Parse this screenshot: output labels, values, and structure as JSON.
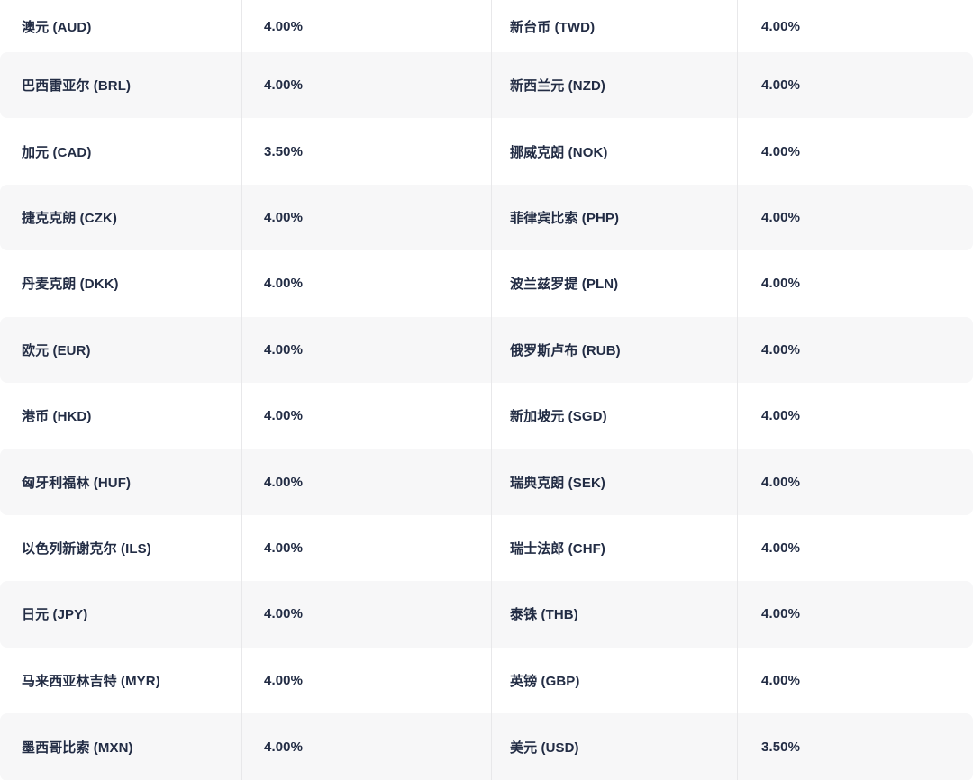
{
  "table": {
    "description_columns": [
      "currency_left",
      "rate_left",
      "currency_right",
      "rate_right"
    ],
    "rows": [
      {
        "left_currency": "澳元 (AUD)",
        "left_rate": "4.00%",
        "right_currency": "新台币 (TWD)",
        "right_rate": "4.00%"
      },
      {
        "left_currency": "巴西雷亚尔 (BRL)",
        "left_rate": "4.00%",
        "right_currency": "新西兰元 (NZD)",
        "right_rate": "4.00%"
      },
      {
        "left_currency": "加元 (CAD)",
        "left_rate": "3.50%",
        "right_currency": "挪威克朗 (NOK)",
        "right_rate": "4.00%"
      },
      {
        "left_currency": "捷克克朗 (CZK)",
        "left_rate": "4.00%",
        "right_currency": "菲律宾比索 (PHP)",
        "right_rate": "4.00%"
      },
      {
        "left_currency": "丹麦克朗 (DKK)",
        "left_rate": "4.00%",
        "right_currency": "波兰兹罗提 (PLN)",
        "right_rate": "4.00%"
      },
      {
        "left_currency": "欧元 (EUR)",
        "left_rate": "4.00%",
        "right_currency": "俄罗斯卢布 (RUB)",
        "right_rate": "4.00%"
      },
      {
        "left_currency": "港币 (HKD)",
        "left_rate": "4.00%",
        "right_currency": "新加坡元 (SGD)",
        "right_rate": "4.00%"
      },
      {
        "left_currency": "匈牙利福林 (HUF)",
        "left_rate": "4.00%",
        "right_currency": "瑞典克朗 (SEK)",
        "right_rate": "4.00%"
      },
      {
        "left_currency": "以色列新谢克尔 (ILS)",
        "left_rate": "4.00%",
        "right_currency": "瑞士法郎 (CHF)",
        "right_rate": "4.00%"
      },
      {
        "left_currency": "日元 (JPY)",
        "left_rate": "4.00%",
        "right_currency": "泰铢 (THB)",
        "right_rate": "4.00%"
      },
      {
        "left_currency": "马来西亚林吉特 (MYR)",
        "left_rate": "4.00%",
        "right_currency": "英镑 (GBP)",
        "right_rate": "4.00%"
      },
      {
        "left_currency": "墨西哥比索 (MXN)",
        "left_rate": "4.00%",
        "right_currency": "美元 (USD)",
        "right_rate": "3.50%"
      }
    ]
  },
  "colors": {
    "text": "#222c44",
    "row_alt_background": "#f7f7f8",
    "row_background": "#ffffff",
    "divider": "#e8e8ea"
  }
}
